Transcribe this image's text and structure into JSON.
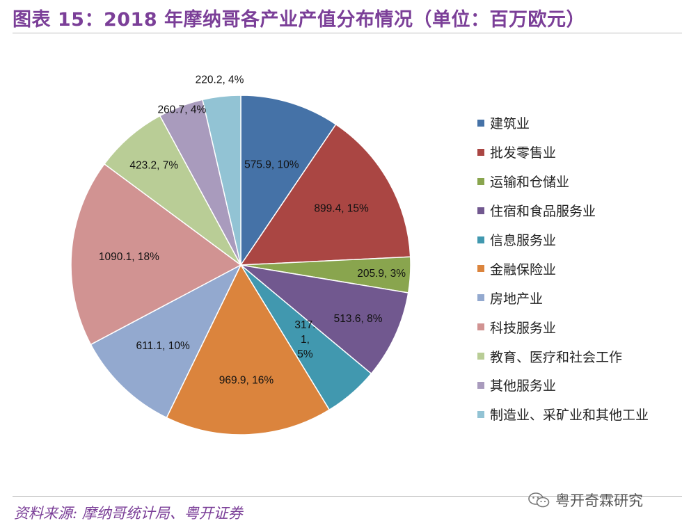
{
  "header": {
    "title": "图表 15：2018 年摩纳哥各产业产值分布情况（单位：百万欧元）"
  },
  "footer": {
    "source": "资料来源: 摩纳哥统计局、粤开证券",
    "watermark": "粤开奇霖研究",
    "watermark_icon": "wechat-icon"
  },
  "chart_data": {
    "type": "pie",
    "start_angle": "12 o'clock, clockwise",
    "legend_position": "right",
    "slices": [
      {
        "name": "建筑业",
        "value": 575.9,
        "percent_label": "10%",
        "label": "575.9, 10%",
        "color": "#4572a7"
      },
      {
        "name": "批发零售业",
        "value": 899.4,
        "percent_label": "15%",
        "label": "899.4, 15%",
        "color": "#aa4643"
      },
      {
        "name": "运输和仓储业",
        "value": 205.9,
        "percent_label": "3%",
        "label": "205.9, 3%",
        "color": "#89a54e"
      },
      {
        "name": "住宿和食品服务业",
        "value": 513.6,
        "percent_label": "8%",
        "label": "513.6, 8%",
        "color": "#71588f"
      },
      {
        "name": "信息服务业",
        "value": 317.1,
        "percent_label": "5%",
        "label_lines": [
          "317.",
          "1,",
          "5%"
        ],
        "color": "#4198af"
      },
      {
        "name": "金融保险业",
        "value": 969.9,
        "percent_label": "16%",
        "label": "969.9, 16%",
        "color": "#db843d"
      },
      {
        "name": "房地产业",
        "value": 611.1,
        "percent_label": "10%",
        "label": "611.1, 10%",
        "color": "#93a9cf"
      },
      {
        "name": "科技服务业",
        "value": 1090.1,
        "percent_label": "18%",
        "label": "1090.1, 18%",
        "color": "#d19392"
      },
      {
        "name": "教育、医疗和社会工作",
        "value": 423.2,
        "percent_label": "7%",
        "label": "423.2, 7%",
        "color": "#b9cd96"
      },
      {
        "name": "其他服务业",
        "value": 260.7,
        "percent_label": "4%",
        "label": "260.7, 4%",
        "color": "#a99bbd"
      },
      {
        "name": "制造业、采矿业和其他工业",
        "value": 220.2,
        "percent_label": "4%",
        "label": "220.2, 4%",
        "color": "#92c3d4"
      }
    ]
  }
}
